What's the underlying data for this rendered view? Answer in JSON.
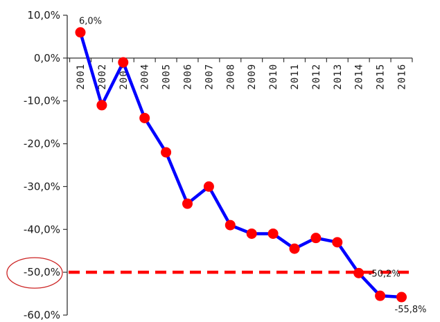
{
  "chart_data": {
    "type": "line",
    "categories": [
      "2001",
      "2002",
      "2003",
      "2004",
      "2005",
      "2006",
      "2007",
      "2008",
      "2009",
      "2010",
      "2011",
      "2012",
      "2013",
      "2014",
      "2015",
      "2016"
    ],
    "series": [
      {
        "values": [
          6.0,
          -11.0,
          -1.0,
          -14.0,
          -22.0,
          -34.0,
          -30.0,
          -39.0,
          -41.0,
          -41.0,
          -44.5,
          -42.0,
          -43.0,
          -50.2,
          -55.5,
          -55.8
        ],
        "color": "#0000ff",
        "marker_color": "#ff0000"
      }
    ],
    "reference_line": {
      "value": -50.0,
      "color": "#ff0000",
      "style": "dashed"
    },
    "highlight": {
      "tick": "-50,0%",
      "shape": "ellipse",
      "color": "#cc2222"
    },
    "data_labels": [
      {
        "category": "2001",
        "text": "6,0%"
      },
      {
        "category": "2014",
        "text": "-50,2%"
      },
      {
        "category": "2016",
        "text": "-55,8%"
      }
    ],
    "y_ticks": [
      {
        "value": 10,
        "label": "10,0%"
      },
      {
        "value": 0,
        "label": "0,0%"
      },
      {
        "value": -10,
        "label": "-10,0%"
      },
      {
        "value": -20,
        "label": "-20,0%"
      },
      {
        "value": -30,
        "label": "-30,0%"
      },
      {
        "value": -40,
        "label": "-40,0%"
      },
      {
        "value": -50,
        "label": "-50,0%"
      },
      {
        "value": -60,
        "label": "-60,0%"
      }
    ],
    "ylim": [
      -60,
      10
    ],
    "grid": false,
    "legend": "none"
  }
}
